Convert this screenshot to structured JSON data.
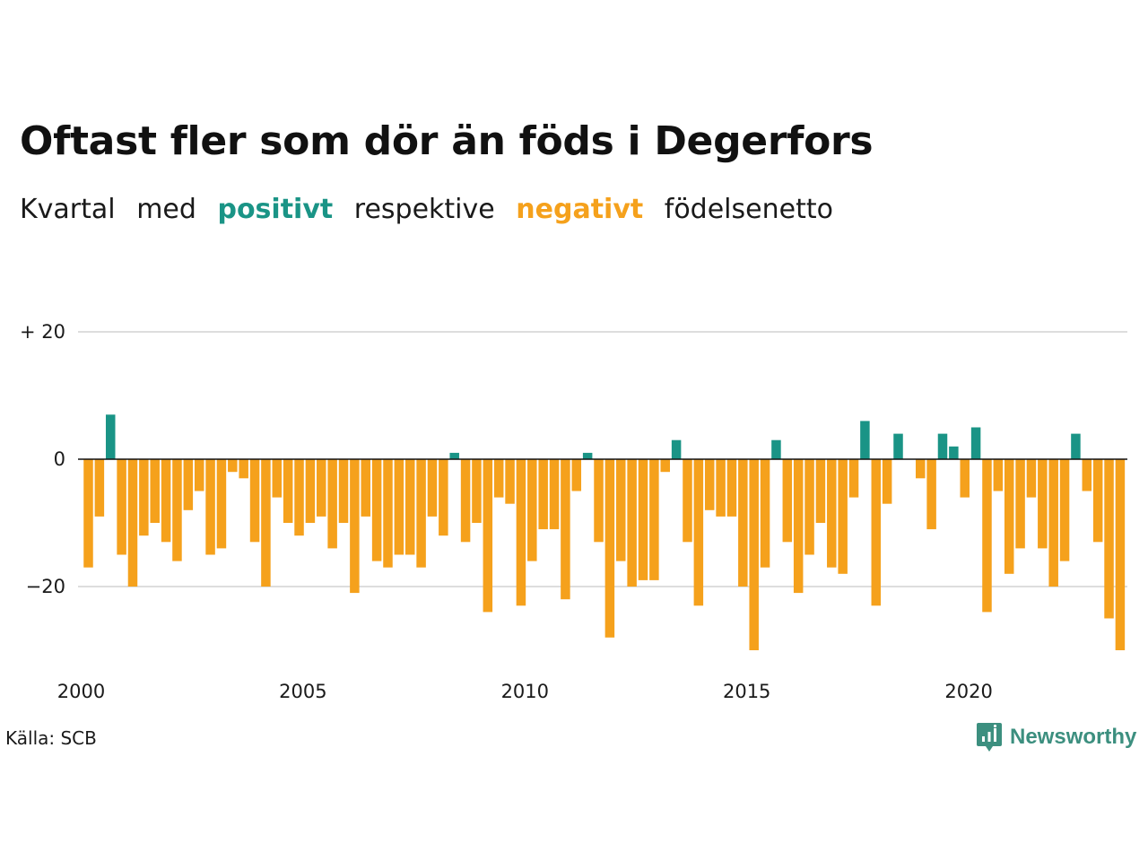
{
  "title": "Oftast fler som dör än föds i Degerfors",
  "subtitle": {
    "part1": "Kvartal",
    "part2": "med",
    "positive": "positivt",
    "part3": "respektive",
    "negative": "negativt",
    "part4": "födelsenetto"
  },
  "source": "Källa: SCB",
  "brand": "Newsworthy",
  "colors": {
    "positive": "#1a9486",
    "negative": "#f5a11c",
    "grid": "#dddddd",
    "zero_line": "#111111",
    "brand": "#3c8f7f"
  },
  "chart_data": {
    "type": "bar",
    "title": "Oftast fler som dör än föds i Degerfors",
    "xlabel": "",
    "ylabel": "",
    "ylim": [
      -30,
      20
    ],
    "grid": true,
    "yticks": [
      {
        "value": 20,
        "label": "+ 20"
      },
      {
        "value": 0,
        "label": "0"
      },
      {
        "value": -20,
        "label": "−20"
      }
    ],
    "xticks": [
      {
        "value": 2000,
        "label": "2000"
      },
      {
        "value": 2005,
        "label": "2005"
      },
      {
        "value": 2010,
        "label": "2010"
      },
      {
        "value": 2015,
        "label": "2015"
      },
      {
        "value": 2020,
        "label": "2020"
      }
    ],
    "first_quarter": "2000 Q1",
    "values": [
      -17,
      -9,
      7,
      -15,
      -20,
      -12,
      -10,
      -13,
      -16,
      -8,
      -5,
      -15,
      -14,
      -2,
      -3,
      -13,
      -20,
      -6,
      -10,
      -12,
      -10,
      -9,
      -14,
      -10,
      -21,
      -9,
      -16,
      -17,
      -15,
      -15,
      -17,
      -9,
      -12,
      1,
      -13,
      -10,
      -24,
      -6,
      -7,
      -23,
      -16,
      -11,
      -11,
      -22,
      -5,
      1,
      -13,
      -28,
      -16,
      -20,
      -19,
      -19,
      -2,
      3,
      -13,
      -23,
      -8,
      -9,
      -9,
      -20,
      -30,
      -17,
      3,
      -13,
      -21,
      -15,
      -10,
      -17,
      -18,
      -6,
      6,
      -23,
      -7,
      4,
      0,
      -3,
      -11,
      4,
      2,
      -6,
      5,
      -24,
      -5,
      -18,
      -14,
      -6,
      -14,
      -20,
      -16,
      4,
      -5,
      -13,
      -25,
      -30
    ]
  }
}
